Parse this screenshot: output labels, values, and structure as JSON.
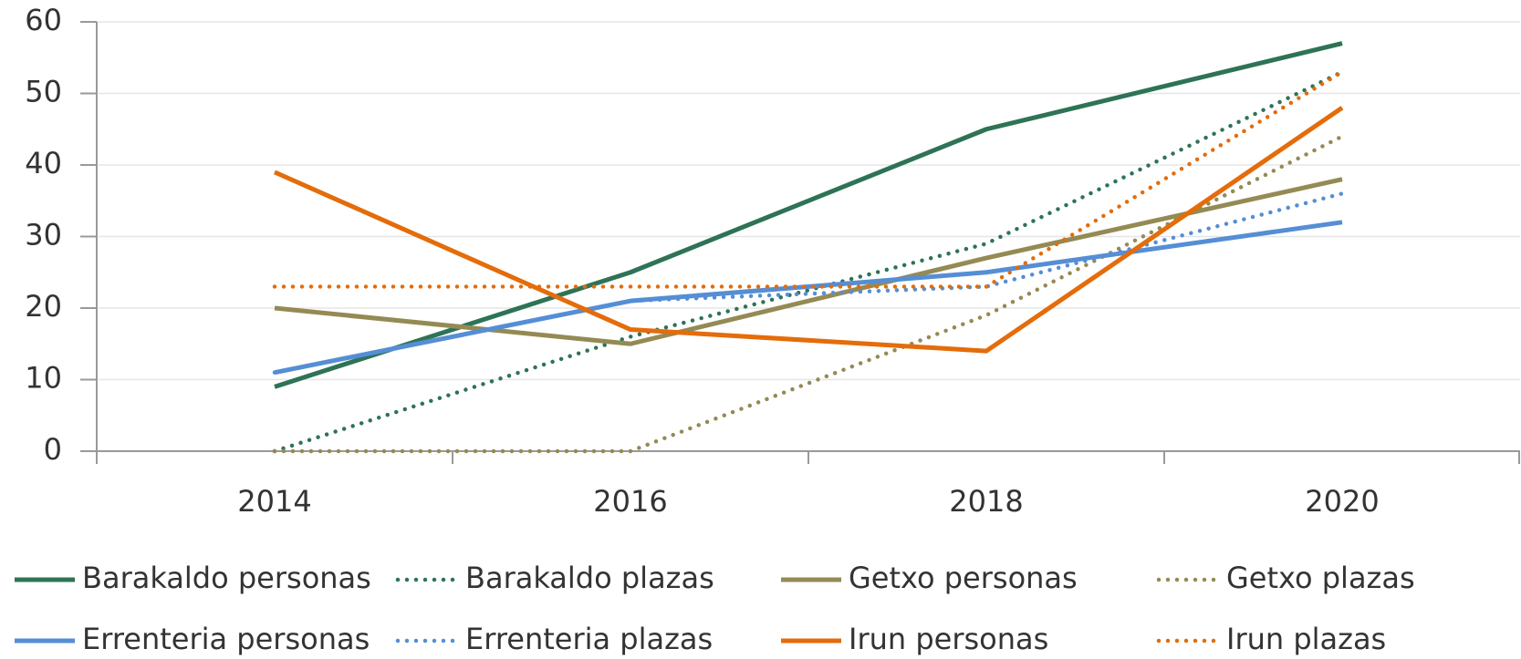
{
  "chart_data": {
    "type": "line",
    "categories": [
      "2014",
      "2016",
      "2018",
      "2020"
    ],
    "series": [
      {
        "name": "Barakaldo personas",
        "color": "#2e7356",
        "dashed": false,
        "values": [
          9,
          25,
          45,
          57
        ]
      },
      {
        "name": "Barakaldo plazas",
        "color": "#2e7356",
        "dashed": true,
        "values": [
          0,
          16,
          29,
          53
        ]
      },
      {
        "name": "Getxo personas",
        "color": "#948a54",
        "dashed": false,
        "values": [
          20,
          15,
          27,
          38
        ]
      },
      {
        "name": "Getxo plazas",
        "color": "#948a54",
        "dashed": true,
        "values": [
          0,
          0,
          19,
          44
        ]
      },
      {
        "name": "Errenteria personas",
        "color": "#558ed5",
        "dashed": false,
        "values": [
          11,
          21,
          25,
          32
        ]
      },
      {
        "name": "Errenteria plazas",
        "color": "#558ed5",
        "dashed": true,
        "values": [
          11,
          21,
          23,
          36
        ]
      },
      {
        "name": "Irun personas",
        "color": "#e46c0a",
        "dashed": false,
        "values": [
          39,
          17,
          14,
          48
        ]
      },
      {
        "name": "Irun plazas",
        "color": "#e46c0a",
        "dashed": true,
        "values": [
          23,
          23,
          23,
          53
        ]
      }
    ],
    "ylim": [
      0,
      60
    ],
    "yticks": [
      0,
      10,
      20,
      30,
      40,
      50,
      60
    ],
    "grid": true,
    "legend": "bottom"
  }
}
